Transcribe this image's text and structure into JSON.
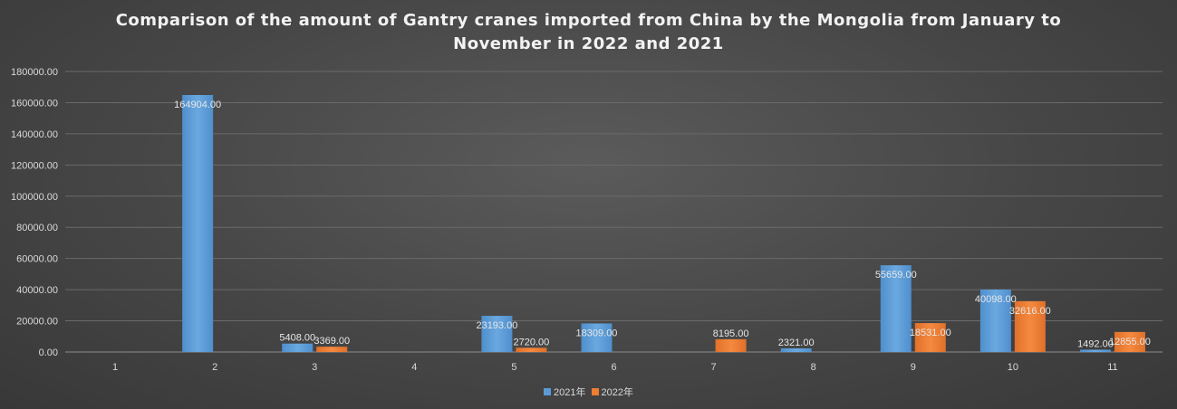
{
  "chart_data": {
    "type": "bar",
    "title_line1": "Comparison of the amount of Gantry cranes imported from China by the Mongolia from January to",
    "title_line2": "November in 2022 and 2021",
    "categories": [
      "1",
      "2",
      "3",
      "4",
      "5",
      "6",
      "7",
      "8",
      "9",
      "10",
      "11"
    ],
    "series": [
      {
        "name": "2021年",
        "color": "#5b9bd5",
        "values": [
          null,
          164904.0,
          5408.0,
          null,
          23193.0,
          18309.0,
          null,
          2321.0,
          55659.0,
          40098.0,
          1492.0
        ],
        "labels": [
          "",
          "164904.00",
          "5408.00",
          "",
          "23193.00",
          "18309.00",
          "",
          "2321.00",
          "55659.00",
          "40098.00",
          "1492.00"
        ]
      },
      {
        "name": "2022年",
        "color": "#ed7d31",
        "values": [
          null,
          null,
          3369.0,
          null,
          2720.0,
          null,
          8195.0,
          null,
          18531.0,
          32616.0,
          12855.0
        ],
        "labels": [
          "",
          "",
          "3369.00",
          "",
          "2720.00",
          "",
          "8195.00",
          "",
          "18531.00",
          "32616.00",
          "12855.00"
        ]
      }
    ],
    "ylim": [
      0,
      180000
    ],
    "yticks": [
      "0.00",
      "20000.00",
      "40000.00",
      "60000.00",
      "80000.00",
      "100000.00",
      "120000.00",
      "140000.00",
      "160000.00",
      "180000.00"
    ],
    "ytick_values": [
      0,
      20000,
      40000,
      60000,
      80000,
      100000,
      120000,
      140000,
      160000,
      180000
    ],
    "grid": true,
    "legend_position": "bottom"
  }
}
